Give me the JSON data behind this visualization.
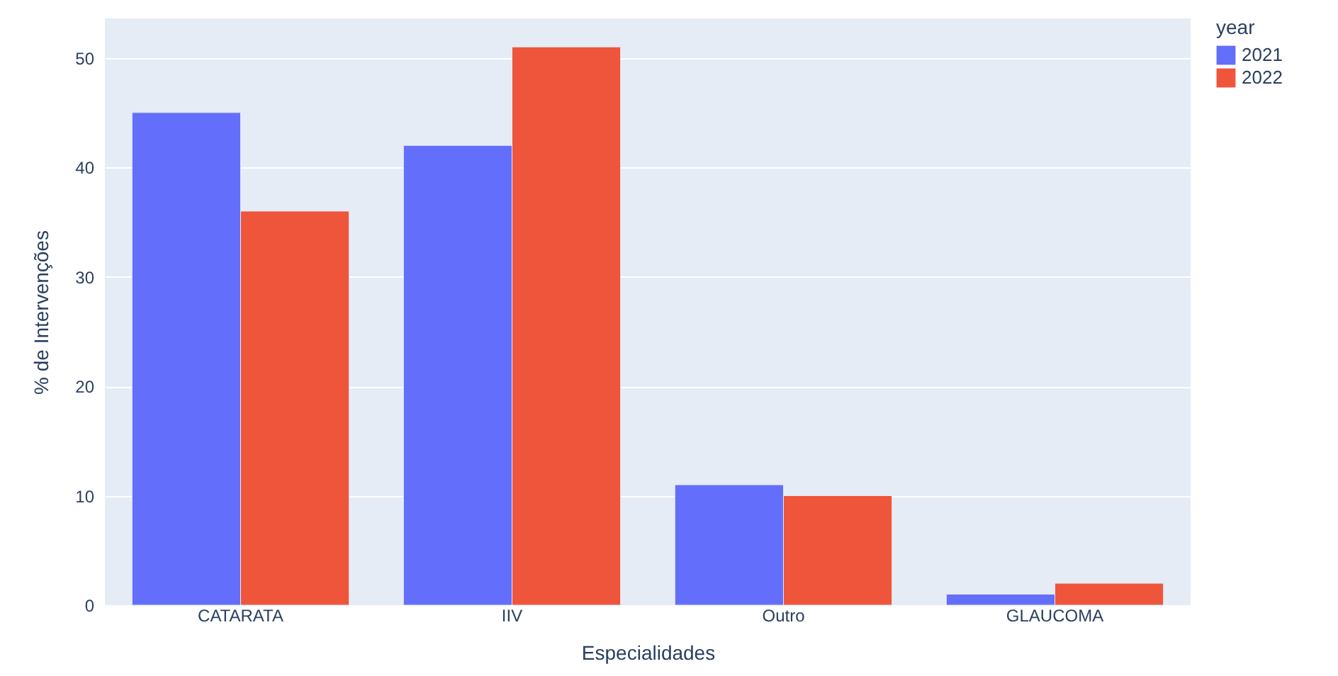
{
  "chart_data": {
    "type": "bar",
    "xlabel": "Especialidades",
    "ylabel": "% de Intervenções",
    "legend_title": "year",
    "categories": [
      "CATARATA",
      "IIV",
      "Outro",
      "GLAUCOMA"
    ],
    "series": [
      {
        "name": "2021",
        "color": "#636efa",
        "values": [
          45,
          42,
          11,
          1
        ]
      },
      {
        "name": "2022",
        "color": "#ef553b",
        "values": [
          36,
          51,
          10,
          2
        ]
      }
    ],
    "ylim": [
      0,
      53.6
    ],
    "yticks": [
      0,
      10,
      20,
      30,
      40,
      50
    ],
    "grid": "y",
    "legend": "top right"
  }
}
